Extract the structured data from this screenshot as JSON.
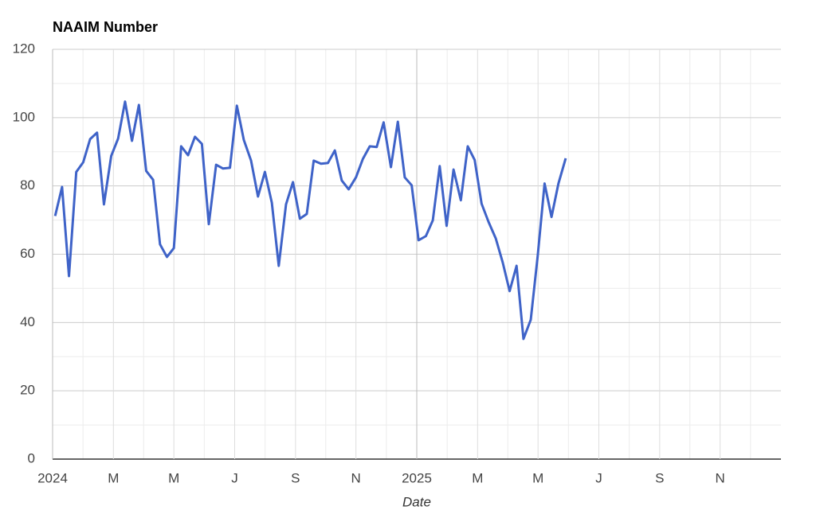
{
  "chart_data": {
    "type": "line",
    "title": "NAAIM Number",
    "x_label": "Date",
    "x": [
      2024.007,
      2024.026,
      2024.045,
      2024.065,
      2024.084,
      2024.103,
      2024.122,
      2024.141,
      2024.161,
      2024.18,
      2024.199,
      2024.218,
      2024.237,
      2024.257,
      2024.276,
      2024.295,
      2024.314,
      2024.333,
      2024.353,
      2024.372,
      2024.391,
      2024.41,
      2024.429,
      2024.449,
      2024.468,
      2024.487,
      2024.506,
      2024.525,
      2024.545,
      2024.564,
      2024.583,
      2024.602,
      2024.621,
      2024.641,
      2024.66,
      2024.679,
      2024.698,
      2024.717,
      2024.737,
      2024.756,
      2024.775,
      2024.794,
      2024.813,
      2024.833,
      2024.852,
      2024.871,
      2024.89,
      2024.909,
      2024.929,
      2024.948,
      2024.967,
      2024.986,
      2025.005,
      2025.025,
      2025.044,
      2025.063,
      2025.082,
      2025.101,
      2025.121,
      2025.14,
      2025.159,
      2025.178,
      2025.197,
      2025.217,
      2025.236,
      2025.255,
      2025.274,
      2025.293,
      2025.313,
      2025.332,
      2025.351,
      2025.37,
      2025.389,
      2025.409
    ],
    "series": [
      {
        "name": "NAAIM Number",
        "color": "#3f63c8",
        "values": [
          71.2,
          79.7,
          53.6,
          84.1,
          86.9,
          93.7,
          95.6,
          74.6,
          88.8,
          93.9,
          104.7,
          93.2,
          103.7,
          84.4,
          81.8,
          62.9,
          59.2,
          61.8,
          91.6,
          89.0,
          94.4,
          92.3,
          68.8,
          86.2,
          85.1,
          85.3,
          103.5,
          93.5,
          87.4,
          76.9,
          84.1,
          75.1,
          56.6,
          74.6,
          81.1,
          70.4,
          71.8,
          87.4,
          86.5,
          86.7,
          90.4,
          81.6,
          79.0,
          82.5,
          87.9,
          91.6,
          91.4,
          98.6,
          85.5,
          98.8,
          82.5,
          80.2,
          64.1,
          65.3,
          69.9,
          85.8,
          68.3,
          84.8,
          75.8,
          91.6,
          87.6,
          74.8,
          69.5,
          64.6,
          57.6,
          49.2,
          56.6,
          35.2,
          40.8,
          59.4,
          80.7,
          70.9,
          80.7,
          88.1
        ]
      }
    ],
    "xlim": [
      2024,
      2026
    ],
    "xticks": [
      {
        "value": 2024,
        "label": "2024"
      },
      {
        "value": 2024.167,
        "label": "M"
      },
      {
        "value": 2024.333,
        "label": "M"
      },
      {
        "value": 2024.5,
        "label": "J"
      },
      {
        "value": 2024.667,
        "label": "S"
      },
      {
        "value": 2024.833,
        "label": "N"
      },
      {
        "value": 2025,
        "label": "2025"
      },
      {
        "value": 2025.167,
        "label": "M"
      },
      {
        "value": 2025.333,
        "label": "M"
      },
      {
        "value": 2025.5,
        "label": "J"
      },
      {
        "value": 2025.667,
        "label": "S"
      },
      {
        "value": 2025.833,
        "label": "N"
      }
    ],
    "ylim": [
      0,
      120
    ],
    "yticks": [
      0,
      20,
      40,
      60,
      80,
      100,
      120
    ],
    "grid": true
  }
}
